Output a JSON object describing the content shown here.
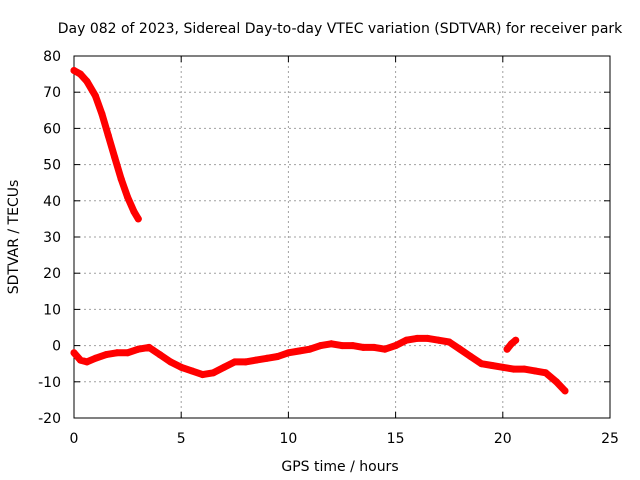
{
  "chart_data": {
    "type": "line",
    "title": "Day 082 of 2023, Sidereal Day-to-day VTEC variation (SDTVAR) for receiver park",
    "xlabel": "GPS time / hours",
    "ylabel": "SDTVAR / TECUs",
    "xlim": [
      0,
      25
    ],
    "ylim": [
      -20,
      80
    ],
    "xticks": [
      0,
      5,
      10,
      15,
      20,
      25
    ],
    "yticks": [
      -20,
      -10,
      0,
      10,
      20,
      30,
      40,
      50,
      60,
      70,
      80
    ],
    "grid": true,
    "color": "#ff0000",
    "series": [
      {
        "name": "sdtvar-early-decline",
        "x": [
          0.0,
          0.3,
          0.6,
          1.0,
          1.3,
          1.6,
          1.9,
          2.2,
          2.5,
          2.8,
          3.0
        ],
        "y": [
          76.0,
          75.0,
          73.0,
          69.0,
          64.0,
          58.0,
          52.0,
          46.0,
          41.0,
          37.0,
          35.0
        ]
      },
      {
        "name": "sdtvar-main",
        "x": [
          0.0,
          0.3,
          0.6,
          1.0,
          1.5,
          2.0,
          2.5,
          3.0,
          3.5,
          4.0,
          4.5,
          5.0,
          5.5,
          6.0,
          6.5,
          7.0,
          7.5,
          8.0,
          8.5,
          9.0,
          9.5,
          10.0,
          10.5,
          11.0,
          11.5,
          12.0,
          12.5,
          13.0,
          13.5,
          14.0,
          14.5,
          15.0,
          15.5,
          16.0,
          16.5,
          17.0,
          17.5,
          18.0,
          18.5,
          19.0,
          19.5,
          20.0,
          20.5,
          21.0,
          21.5,
          22.0,
          22.5,
          22.9
        ],
        "y": [
          -2.0,
          -4.0,
          -4.5,
          -3.5,
          -2.5,
          -2.0,
          -2.0,
          -1.0,
          -0.5,
          -2.5,
          -4.5,
          -6.0,
          -7.0,
          -8.0,
          -7.5,
          -6.0,
          -4.5,
          -4.5,
          -4.0,
          -3.5,
          -3.0,
          -2.0,
          -1.5,
          -1.0,
          0.0,
          0.5,
          0.0,
          0.0,
          -0.5,
          -0.5,
          -1.0,
          0.0,
          1.5,
          2.0,
          2.0,
          1.5,
          1.0,
          -1.0,
          -3.0,
          -5.0,
          -5.5,
          -6.0,
          -6.5,
          -6.5,
          -7.0,
          -7.5,
          -10.0,
          -12.5
        ]
      },
      {
        "name": "sdtvar-fragment",
        "x": [
          20.2,
          20.4,
          20.6
        ],
        "y": [
          -1.0,
          0.5,
          1.5
        ]
      }
    ]
  }
}
